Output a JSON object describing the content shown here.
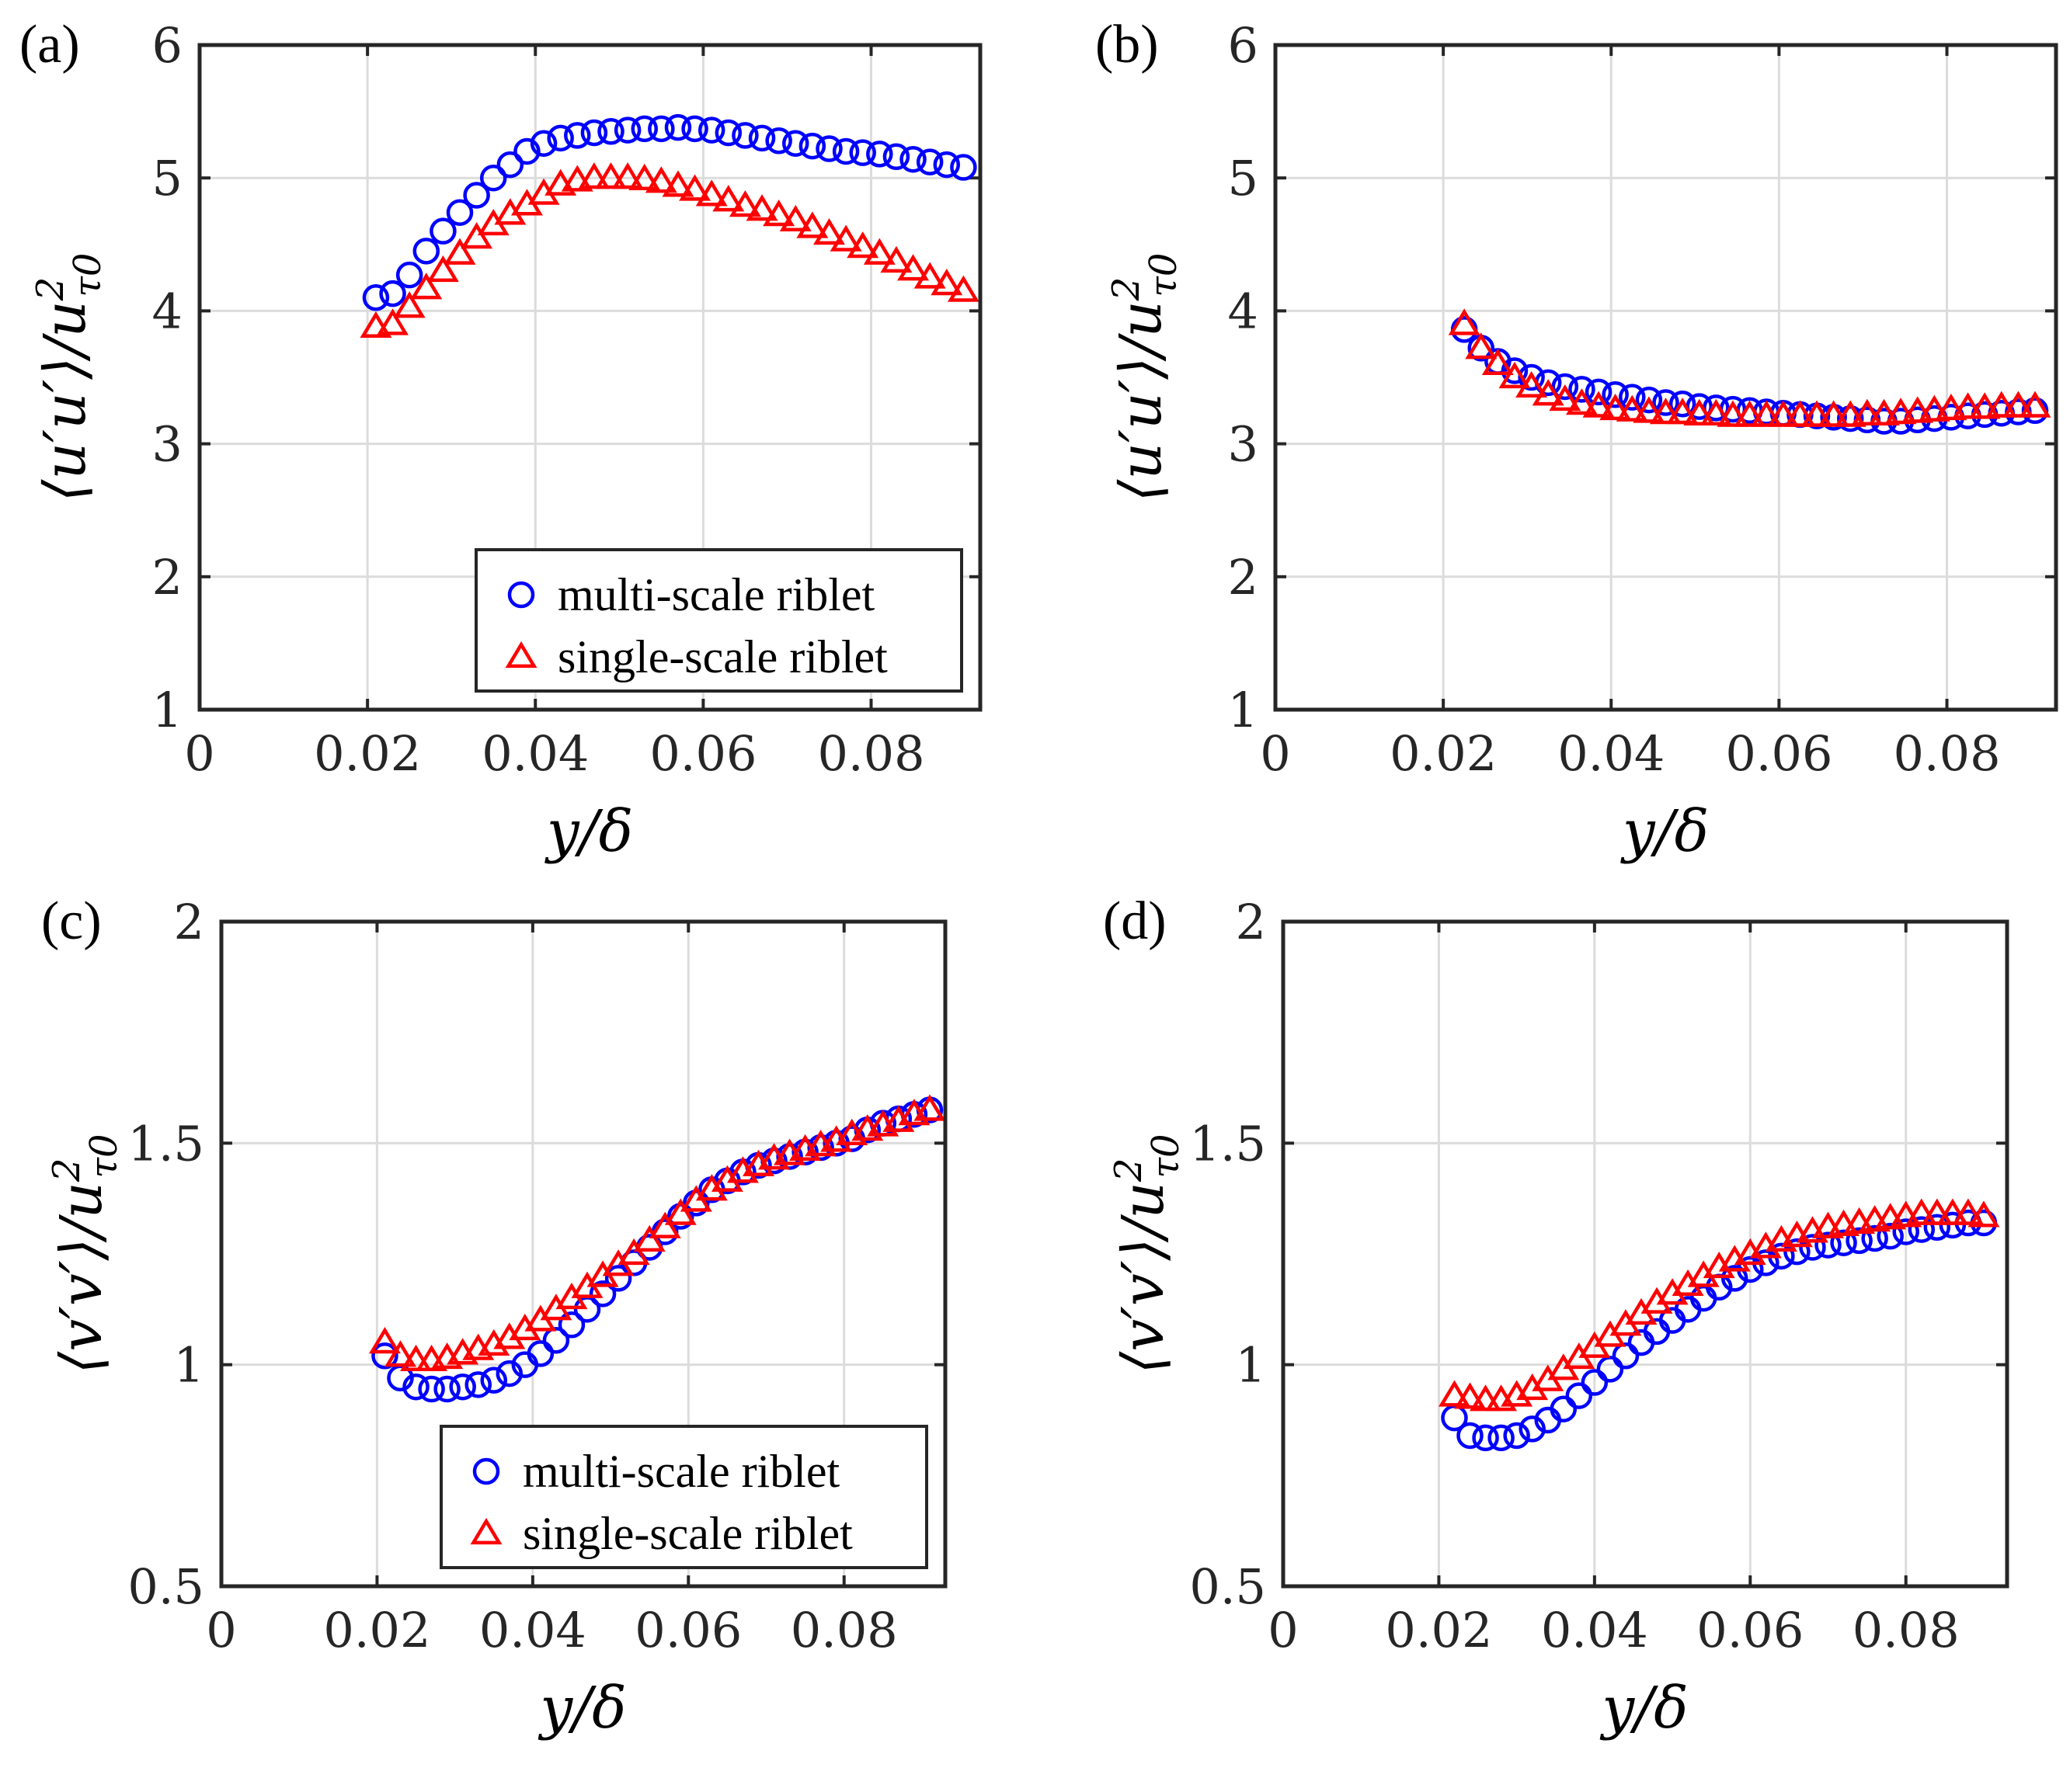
{
  "chart_data": [
    {
      "type": "scatter",
      "panel_label": "(a)",
      "xlabel": "y/δ",
      "ylabel": "⟨u′u′⟩/u²τ0",
      "ylabel_parts": {
        "main": "⟨u′u′⟩/u",
        "sup": "2",
        "sub": "τ0"
      },
      "xlim": [
        0,
        0.093
      ],
      "ylim": [
        1,
        6
      ],
      "xticks": [
        0,
        0.02,
        0.04,
        0.06,
        0.08
      ],
      "xtick_labels": [
        "0",
        "0.02",
        "0.04",
        "0.06",
        "0.08"
      ],
      "yticks": [
        1,
        2,
        3,
        4,
        5,
        6
      ],
      "ytick_labels": [
        "1",
        "2",
        "3",
        "4",
        "5",
        "6"
      ],
      "grid": true,
      "legend": {
        "show": true,
        "location": "bottom-right"
      },
      "series": [
        {
          "name": "multi-scale riblet",
          "marker": "circle",
          "color": "#0000ff",
          "x": [
            0.021,
            0.023,
            0.025,
            0.027,
            0.029,
            0.031,
            0.033,
            0.035,
            0.037,
            0.039,
            0.041,
            0.043,
            0.045,
            0.047,
            0.049,
            0.051,
            0.053,
            0.055,
            0.057,
            0.059,
            0.061,
            0.063,
            0.065,
            0.067,
            0.069,
            0.071,
            0.073,
            0.075,
            0.077,
            0.079,
            0.081,
            0.083,
            0.085,
            0.087,
            0.089,
            0.091
          ],
          "y": [
            4.1,
            4.13,
            4.27,
            4.45,
            4.6,
            4.74,
            4.87,
            5.0,
            5.1,
            5.2,
            5.26,
            5.3,
            5.32,
            5.34,
            5.35,
            5.36,
            5.37,
            5.37,
            5.38,
            5.37,
            5.36,
            5.34,
            5.32,
            5.3,
            5.28,
            5.26,
            5.24,
            5.22,
            5.2,
            5.19,
            5.18,
            5.16,
            5.14,
            5.12,
            5.1,
            5.08
          ]
        },
        {
          "name": "single-scale riblet",
          "marker": "triangle",
          "color": "#ff0000",
          "x": [
            0.021,
            0.023,
            0.025,
            0.027,
            0.029,
            0.031,
            0.033,
            0.035,
            0.037,
            0.039,
            0.041,
            0.043,
            0.045,
            0.047,
            0.049,
            0.051,
            0.053,
            0.055,
            0.057,
            0.059,
            0.061,
            0.063,
            0.065,
            0.067,
            0.069,
            0.071,
            0.073,
            0.075,
            0.077,
            0.079,
            0.081,
            0.083,
            0.085,
            0.087,
            0.089,
            0.091
          ],
          "y": [
            3.88,
            3.9,
            4.03,
            4.17,
            4.3,
            4.43,
            4.55,
            4.65,
            4.73,
            4.8,
            4.88,
            4.95,
            4.98,
            5.0,
            5.0,
            5.0,
            4.99,
            4.97,
            4.94,
            4.91,
            4.87,
            4.83,
            4.79,
            4.76,
            4.72,
            4.68,
            4.63,
            4.58,
            4.53,
            4.48,
            4.43,
            4.37,
            4.31,
            4.25,
            4.2,
            4.15
          ]
        }
      ]
    },
    {
      "type": "scatter",
      "panel_label": "(b)",
      "xlabel": "y/δ",
      "ylabel": "⟨u′u′⟩/u²τ0",
      "ylabel_parts": {
        "main": "⟨u′u′⟩/u",
        "sup": "2",
        "sub": "τ0"
      },
      "xlim": [
        0,
        0.093
      ],
      "ylim": [
        1,
        6
      ],
      "xticks": [
        0,
        0.02,
        0.04,
        0.06,
        0.08
      ],
      "xtick_labels": [
        "0",
        "0.02",
        "0.04",
        "0.06",
        "0.08"
      ],
      "yticks": [
        1,
        2,
        3,
        4,
        5,
        6
      ],
      "ytick_labels": [
        "1",
        "2",
        "3",
        "4",
        "5",
        "6"
      ],
      "grid": true,
      "legend": {
        "show": false
      },
      "series": [
        {
          "name": "multi-scale riblet",
          "marker": "circle",
          "color": "#0000ff",
          "x": [
            0.0225,
            0.0245,
            0.0265,
            0.0285,
            0.0305,
            0.0325,
            0.0345,
            0.0365,
            0.0385,
            0.0405,
            0.0425,
            0.0445,
            0.0465,
            0.0485,
            0.0505,
            0.0525,
            0.0545,
            0.0565,
            0.0585,
            0.0605,
            0.0625,
            0.0645,
            0.0665,
            0.0685,
            0.0705,
            0.0725,
            0.0745,
            0.0765,
            0.0785,
            0.0805,
            0.0825,
            0.0845,
            0.0865,
            0.0885,
            0.0905
          ],
          "y": [
            3.86,
            3.72,
            3.62,
            3.55,
            3.5,
            3.46,
            3.43,
            3.41,
            3.39,
            3.37,
            3.35,
            3.33,
            3.31,
            3.3,
            3.28,
            3.27,
            3.26,
            3.25,
            3.24,
            3.23,
            3.22,
            3.21,
            3.2,
            3.19,
            3.18,
            3.17,
            3.17,
            3.18,
            3.19,
            3.2,
            3.21,
            3.22,
            3.23,
            3.24,
            3.25
          ]
        },
        {
          "name": "single-scale riblet",
          "marker": "triangle",
          "color": "#ff0000",
          "x": [
            0.0225,
            0.0245,
            0.0265,
            0.0285,
            0.0305,
            0.0325,
            0.0345,
            0.0365,
            0.0385,
            0.0405,
            0.0425,
            0.0445,
            0.0465,
            0.0485,
            0.0505,
            0.0525,
            0.0545,
            0.0565,
            0.0585,
            0.0605,
            0.0625,
            0.0645,
            0.0665,
            0.0685,
            0.0705,
            0.0725,
            0.0745,
            0.0765,
            0.0785,
            0.0805,
            0.0825,
            0.0845,
            0.0865,
            0.0885,
            0.0905
          ],
          "y": [
            3.9,
            3.72,
            3.6,
            3.5,
            3.43,
            3.37,
            3.33,
            3.3,
            3.28,
            3.26,
            3.25,
            3.24,
            3.23,
            3.23,
            3.22,
            3.22,
            3.21,
            3.21,
            3.21,
            3.21,
            3.21,
            3.21,
            3.21,
            3.21,
            3.22,
            3.22,
            3.23,
            3.24,
            3.25,
            3.26,
            3.27,
            3.27,
            3.28,
            3.28,
            3.28
          ]
        }
      ]
    },
    {
      "type": "scatter",
      "panel_label": "(c)",
      "xlabel": "y/δ",
      "ylabel": "⟨v′v′⟩/u²τ0",
      "ylabel_parts": {
        "main": "⟨v′v′⟩/u",
        "sup": "2",
        "sub": "τ0"
      },
      "xlim": [
        0,
        0.093
      ],
      "ylim": [
        0.5,
        2
      ],
      "xticks": [
        0,
        0.02,
        0.04,
        0.06,
        0.08
      ],
      "xtick_labels": [
        "0",
        "0.02",
        "0.04",
        "0.06",
        "0.08"
      ],
      "yticks": [
        0.5,
        1,
        1.5,
        2
      ],
      "ytick_labels": [
        "0.5",
        "1",
        "1.5",
        "2"
      ],
      "grid": true,
      "legend": {
        "show": true,
        "location": "bottom-right"
      },
      "series": [
        {
          "name": "multi-scale riblet",
          "marker": "circle",
          "color": "#0000ff",
          "x": [
            0.021,
            0.023,
            0.025,
            0.027,
            0.029,
            0.031,
            0.033,
            0.035,
            0.037,
            0.039,
            0.041,
            0.043,
            0.045,
            0.047,
            0.049,
            0.051,
            0.053,
            0.055,
            0.057,
            0.059,
            0.061,
            0.063,
            0.065,
            0.067,
            0.069,
            0.071,
            0.073,
            0.075,
            0.077,
            0.079,
            0.081,
            0.083,
            0.085,
            0.087,
            0.089,
            0.091
          ],
          "y": [
            1.02,
            0.97,
            0.95,
            0.945,
            0.945,
            0.95,
            0.955,
            0.965,
            0.98,
            1.0,
            1.025,
            1.055,
            1.09,
            1.125,
            1.16,
            1.195,
            1.23,
            1.265,
            1.3,
            1.335,
            1.365,
            1.395,
            1.415,
            1.435,
            1.45,
            1.46,
            1.47,
            1.48,
            1.49,
            1.5,
            1.51,
            1.53,
            1.545,
            1.555,
            1.565,
            1.575
          ]
        },
        {
          "name": "single-scale riblet",
          "marker": "triangle",
          "color": "#ff0000",
          "x": [
            0.021,
            0.023,
            0.025,
            0.027,
            0.029,
            0.031,
            0.033,
            0.035,
            0.037,
            0.039,
            0.041,
            0.043,
            0.045,
            0.047,
            0.049,
            0.051,
            0.053,
            0.055,
            0.057,
            0.059,
            0.061,
            0.063,
            0.065,
            0.067,
            0.069,
            0.071,
            0.073,
            0.075,
            0.077,
            0.079,
            0.081,
            0.083,
            0.085,
            0.087,
            0.089,
            0.091
          ],
          "y": [
            1.05,
            1.02,
            1.01,
            1.01,
            1.015,
            1.025,
            1.035,
            1.045,
            1.06,
            1.08,
            1.1,
            1.125,
            1.15,
            1.175,
            1.2,
            1.225,
            1.25,
            1.28,
            1.31,
            1.34,
            1.37,
            1.395,
            1.415,
            1.435,
            1.45,
            1.465,
            1.475,
            1.485,
            1.495,
            1.505,
            1.52,
            1.53,
            1.54,
            1.55,
            1.565,
            1.575
          ]
        }
      ]
    },
    {
      "type": "scatter",
      "panel_label": "(d)",
      "xlabel": "y/δ",
      "ylabel": "⟨v′v′⟩/u²τ0",
      "ylabel_parts": {
        "main": "⟨v′v′⟩/u",
        "sup": "2",
        "sub": "τ0"
      },
      "xlim": [
        0,
        0.093
      ],
      "ylim": [
        0.5,
        2
      ],
      "xticks": [
        0,
        0.02,
        0.04,
        0.06,
        0.08
      ],
      "xtick_labels": [
        "0",
        "0.02",
        "0.04",
        "0.06",
        "0.08"
      ],
      "yticks": [
        0.5,
        1,
        1.5,
        2
      ],
      "ytick_labels": [
        "0.5",
        "1",
        "1.5",
        "2"
      ],
      "grid": true,
      "legend": {
        "show": false
      },
      "series": [
        {
          "name": "multi-scale riblet",
          "marker": "circle",
          "color": "#0000ff",
          "x": [
            0.022,
            0.024,
            0.026,
            0.028,
            0.03,
            0.032,
            0.034,
            0.036,
            0.038,
            0.04,
            0.042,
            0.044,
            0.046,
            0.048,
            0.05,
            0.052,
            0.054,
            0.056,
            0.058,
            0.06,
            0.062,
            0.064,
            0.066,
            0.068,
            0.07,
            0.072,
            0.074,
            0.076,
            0.078,
            0.08,
            0.082,
            0.084,
            0.086,
            0.088,
            0.09
          ],
          "y": [
            0.88,
            0.84,
            0.835,
            0.835,
            0.84,
            0.855,
            0.875,
            0.9,
            0.93,
            0.96,
            0.99,
            1.02,
            1.05,
            1.075,
            1.1,
            1.125,
            1.15,
            1.175,
            1.195,
            1.215,
            1.23,
            1.245,
            1.255,
            1.265,
            1.27,
            1.275,
            1.28,
            1.285,
            1.29,
            1.3,
            1.305,
            1.31,
            1.315,
            1.32,
            1.32
          ]
        },
        {
          "name": "single-scale riblet",
          "marker": "triangle",
          "color": "#ff0000",
          "x": [
            0.022,
            0.024,
            0.026,
            0.028,
            0.03,
            0.032,
            0.034,
            0.036,
            0.038,
            0.04,
            0.042,
            0.044,
            0.046,
            0.048,
            0.05,
            0.052,
            0.054,
            0.056,
            0.058,
            0.06,
            0.062,
            0.064,
            0.066,
            0.068,
            0.07,
            0.072,
            0.074,
            0.076,
            0.078,
            0.08,
            0.082,
            0.084,
            0.086,
            0.088,
            0.09
          ],
          "y": [
            0.93,
            0.925,
            0.92,
            0.92,
            0.93,
            0.945,
            0.965,
            0.99,
            1.015,
            1.04,
            1.065,
            1.09,
            1.115,
            1.14,
            1.16,
            1.18,
            1.2,
            1.22,
            1.235,
            1.25,
            1.265,
            1.28,
            1.29,
            1.3,
            1.31,
            1.315,
            1.32,
            1.325,
            1.33,
            1.335,
            1.34,
            1.34,
            1.34,
            1.34,
            1.335
          ]
        }
      ]
    }
  ]
}
